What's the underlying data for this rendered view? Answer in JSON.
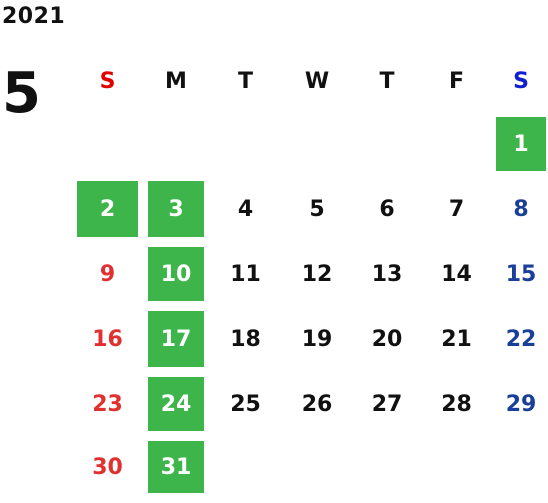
{
  "year": "2021",
  "month": "5",
  "weekdays": [
    "S",
    "M",
    "T",
    "W",
    "T",
    "F",
    "S"
  ],
  "weeks": [
    [
      {
        "day": ""
      },
      {
        "day": ""
      },
      {
        "day": ""
      },
      {
        "day": ""
      },
      {
        "day": ""
      },
      {
        "day": ""
      },
      {
        "day": "1",
        "holiday": true
      }
    ],
    [
      {
        "day": "2",
        "holiday": true
      },
      {
        "day": "3",
        "holiday": true
      },
      {
        "day": "4"
      },
      {
        "day": "5"
      },
      {
        "day": "6"
      },
      {
        "day": "7"
      },
      {
        "day": "8"
      }
    ],
    [
      {
        "day": "9"
      },
      {
        "day": "10",
        "holiday": true
      },
      {
        "day": "11"
      },
      {
        "day": "12"
      },
      {
        "day": "13"
      },
      {
        "day": "14"
      },
      {
        "day": "15"
      }
    ],
    [
      {
        "day": "16"
      },
      {
        "day": "17",
        "holiday": true
      },
      {
        "day": "18"
      },
      {
        "day": "19"
      },
      {
        "day": "20"
      },
      {
        "day": "21"
      },
      {
        "day": "22"
      }
    ],
    [
      {
        "day": "23"
      },
      {
        "day": "24",
        "holiday": true
      },
      {
        "day": "25"
      },
      {
        "day": "26"
      },
      {
        "day": "27"
      },
      {
        "day": "28"
      },
      {
        "day": "29"
      }
    ],
    [
      {
        "day": "30"
      },
      {
        "day": "31",
        "holiday": true
      },
      {
        "day": ""
      },
      {
        "day": ""
      },
      {
        "day": ""
      },
      {
        "day": ""
      },
      {
        "day": ""
      }
    ]
  ],
  "colors": {
    "highlight": "#3db54a",
    "sunday": "#e03030",
    "saturday": "#1a3f99",
    "weekday": "#111111"
  }
}
